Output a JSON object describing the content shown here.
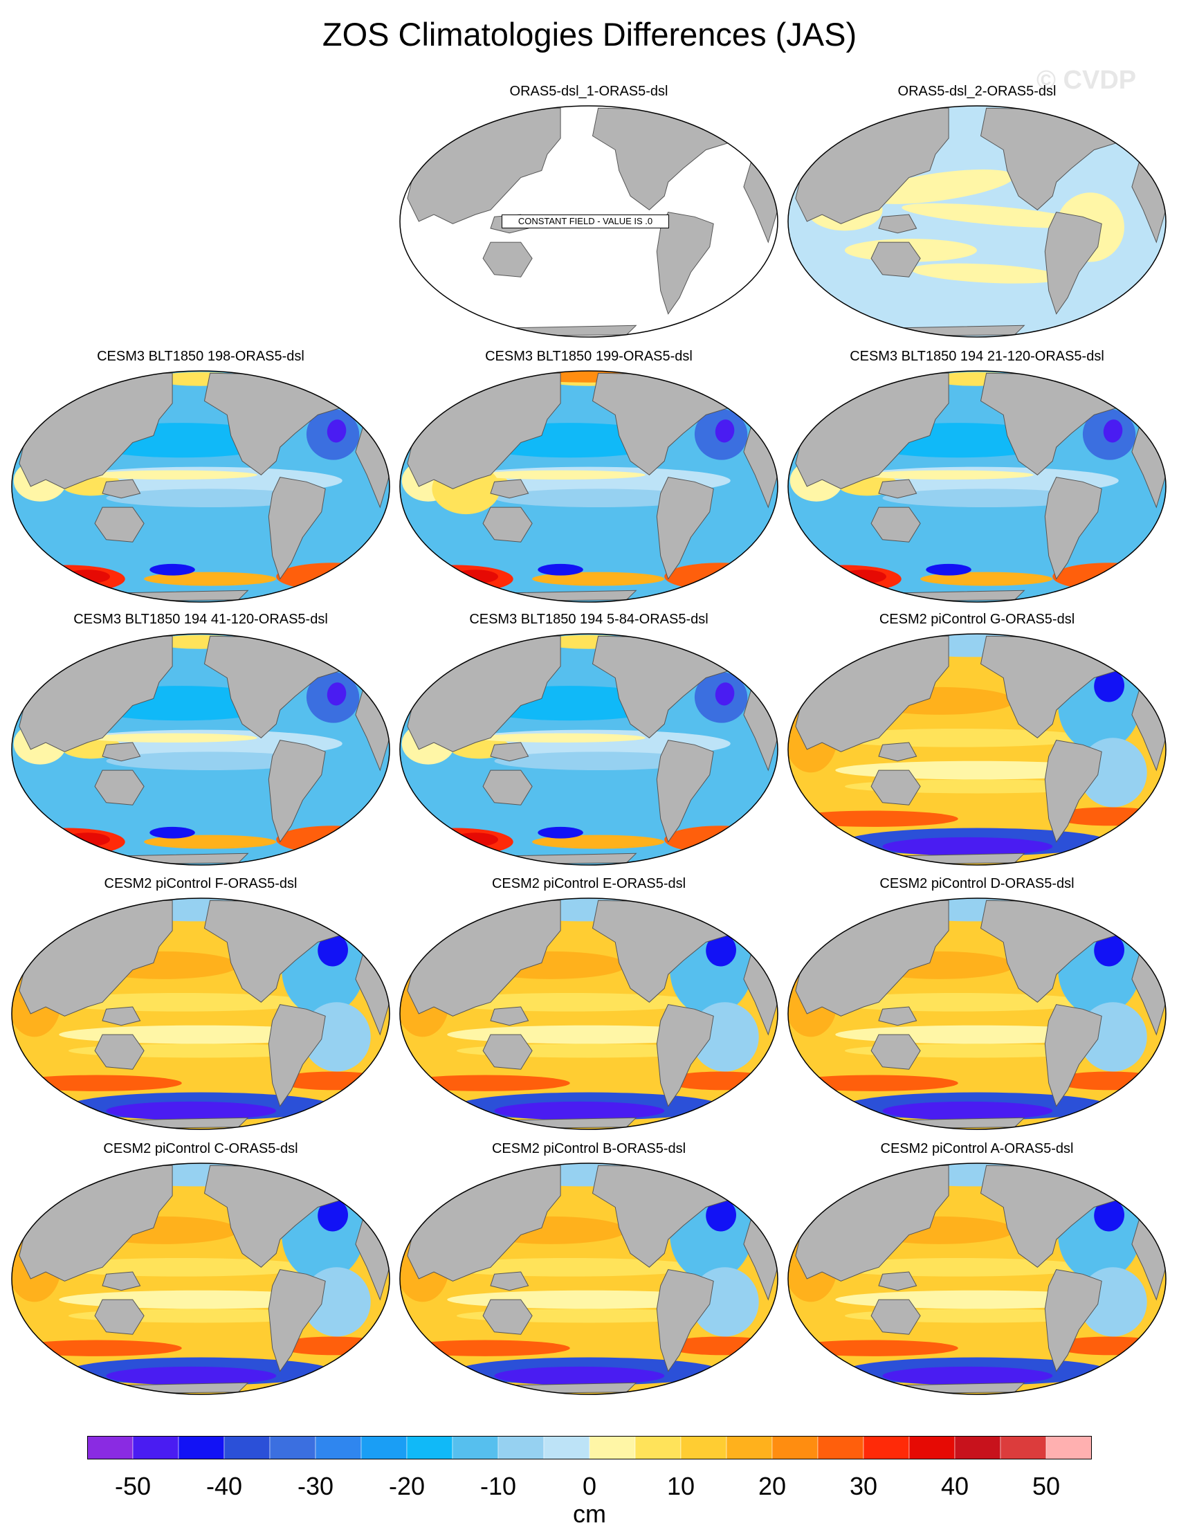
{
  "title": "ZOS Climatologies Differences (JAS)",
  "watermark": "© CVDP",
  "colors": {
    "land": "#b4b4b4",
    "coast": "#555555",
    "c_n55": "#8a2be2",
    "c_n50": "#4a1cf2",
    "c_n45": "#1212f5",
    "c_n40": "#2b50d8",
    "c_n35": "#3b6fe0",
    "c_n30": "#2f86ef",
    "c_n25": "#1a9ef5",
    "c_n20": "#10b9f8",
    "c_n15": "#56bfee",
    "c_n10": "#96d1f1",
    "c_n5": "#bde3f7",
    "c_p5": "#fff6a6",
    "c_p10": "#ffe35a",
    "c_p15": "#ffcd32",
    "c_p20": "#ffb11c",
    "c_p25": "#ff8d10",
    "c_p30": "#ff5f0c",
    "c_p35": "#ff2a08",
    "c_p40": "#e60a04",
    "c_p45": "#c8121c",
    "c_p50": "#dc3c3c",
    "c_p55": "#ffb0b0"
  },
  "panels": [
    {
      "title": "ORAS5-dsl_1-ORAS5-dsl",
      "scheme": "constant",
      "note": "CONSTANT FIELD - VALUE IS .0"
    },
    {
      "title": "ORAS5-dsl_2-ORAS5-dsl",
      "scheme": "near-zero"
    },
    {
      "title": "CESM3 BLT1850 198-ORAS5-dsl",
      "scheme": "cesm3"
    },
    {
      "title": "CESM3 BLT1850 199-ORAS5-dsl",
      "scheme": "cesm3"
    },
    {
      "title": "CESM3 BLT1850 194 21-120-ORAS5-dsl",
      "scheme": "cesm3"
    },
    {
      "title": "CESM3 BLT1850 194 41-120-ORAS5-dsl",
      "scheme": "cesm3"
    },
    {
      "title": "CESM3 BLT1850 194 5-84-ORAS5-dsl",
      "scheme": "cesm3"
    },
    {
      "title": "CESM2 piControl G-ORAS5-dsl",
      "scheme": "cesm2"
    },
    {
      "title": "CESM2 piControl F-ORAS5-dsl",
      "scheme": "cesm2"
    },
    {
      "title": "CESM2 piControl E-ORAS5-dsl",
      "scheme": "cesm2"
    },
    {
      "title": "CESM2 piControl D-ORAS5-dsl",
      "scheme": "cesm2"
    },
    {
      "title": "CESM2 piControl C-ORAS5-dsl",
      "scheme": "cesm2"
    },
    {
      "title": "CESM2 piControl B-ORAS5-dsl",
      "scheme": "cesm2"
    },
    {
      "title": "CESM2 piControl A-ORAS5-dsl",
      "scheme": "cesm2"
    }
  ],
  "colorbar": {
    "units": "cm",
    "levels": [
      -55,
      -50,
      -45,
      -40,
      -35,
      -30,
      -25,
      -20,
      -15,
      -10,
      -5,
      0,
      5,
      10,
      15,
      20,
      25,
      30,
      35,
      40,
      45,
      50,
      55
    ],
    "tick_labels": [
      "-50",
      "-40",
      "-30",
      "-20",
      "-10",
      "0",
      "10",
      "20",
      "30",
      "40",
      "50"
    ],
    "tick_values": [
      -50,
      -40,
      -30,
      -20,
      -10,
      0,
      10,
      20,
      30,
      40,
      50
    ],
    "fill_colors": [
      "#8a2be2",
      "#4a1cf2",
      "#1212f5",
      "#2b50d8",
      "#3b6fe0",
      "#2f86ef",
      "#1a9ef5",
      "#10b9f8",
      "#56bfee",
      "#96d1f1",
      "#bde3f7",
      "#fff6a6",
      "#ffe35a",
      "#ffcd32",
      "#ffb11c",
      "#ff8d10",
      "#ff5f0c",
      "#ff2a08",
      "#e60a04",
      "#c8121c",
      "#dc3c3c",
      "#ffb0b0"
    ]
  }
}
